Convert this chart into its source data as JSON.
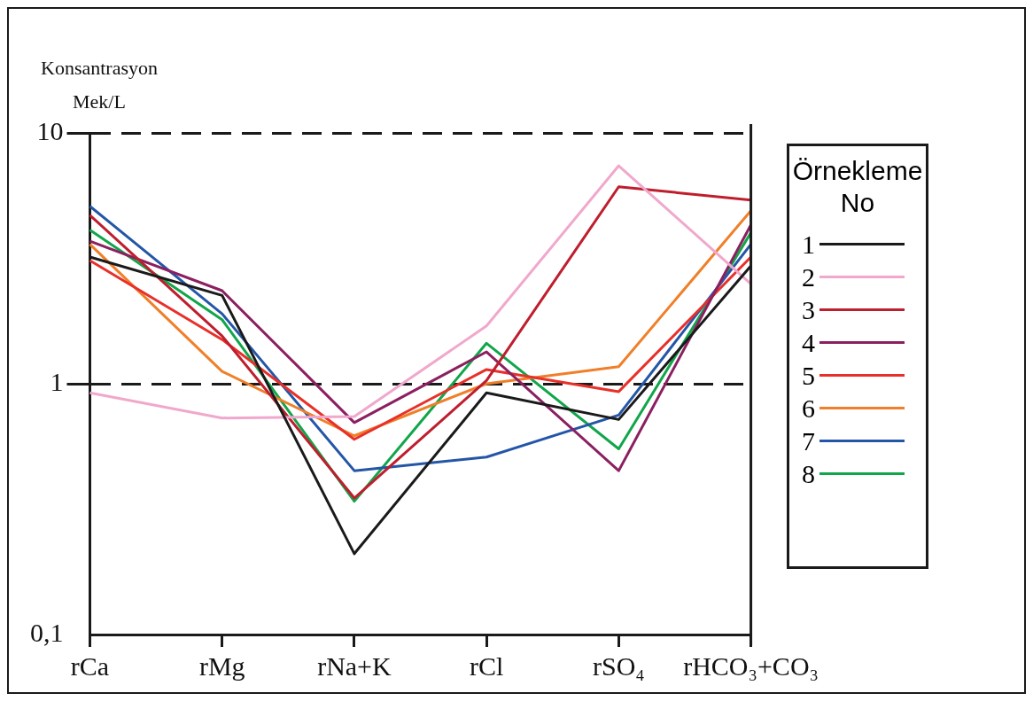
{
  "chart_data": {
    "type": "line",
    "ylabel": "Konsantrasyon\nMek/L",
    "legend_title": "Örnekleme No",
    "categories": [
      "rCa",
      "rMg",
      "rNa+K",
      "rCl",
      "rSO₄",
      "rHCO₃+CO₃"
    ],
    "series": [
      {
        "name": "1",
        "color": "#1a1a1a",
        "values": [
          3.2,
          2.25,
          0.21,
          0.92,
          0.72,
          2.95
        ]
      },
      {
        "name": "2",
        "color": "#f0a8cc",
        "values": [
          0.92,
          0.73,
          0.74,
          1.7,
          7.4,
          2.5
        ]
      },
      {
        "name": "3",
        "color": "#be1e2d",
        "values": [
          4.7,
          1.55,
          0.35,
          1.03,
          6.1,
          5.4
        ]
      },
      {
        "name": "4",
        "color": "#8b2060",
        "values": [
          3.7,
          2.35,
          0.7,
          1.34,
          0.45,
          4.3
        ]
      },
      {
        "name": "5",
        "color": "#e8302a",
        "values": [
          3.1,
          1.5,
          0.6,
          1.14,
          0.93,
          3.2
        ]
      },
      {
        "name": "6",
        "color": "#f07f2a",
        "values": [
          3.6,
          1.12,
          0.62,
          1.0,
          1.17,
          4.9
        ]
      },
      {
        "name": "7",
        "color": "#2456a8",
        "values": [
          5.1,
          1.9,
          0.45,
          0.51,
          0.75,
          3.6
        ]
      },
      {
        "name": "8",
        "color": "#11a64a",
        "values": [
          4.1,
          1.8,
          0.34,
          1.45,
          0.55,
          4.0
        ]
      }
    ],
    "log": "y",
    "ylim": [
      0.1,
      10
    ],
    "yticks": [
      {
        "value": 0.1,
        "label": "0,1"
      },
      1,
      10
    ],
    "grid": "y",
    "legend": "right",
    "marker": "none",
    "line_style": "solid"
  }
}
